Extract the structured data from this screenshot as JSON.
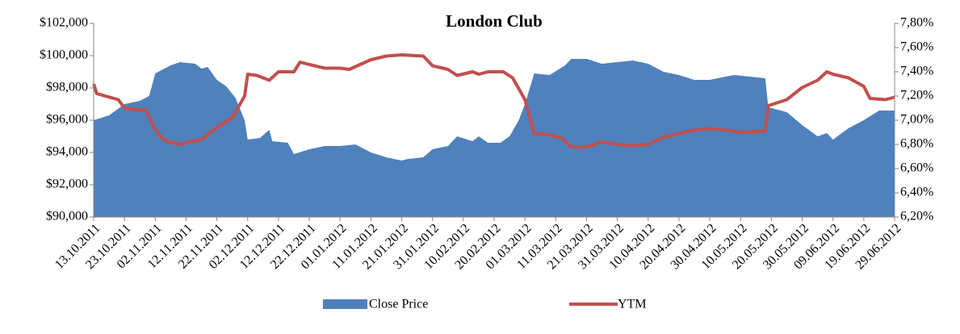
{
  "chart_data": {
    "type": "area-line",
    "title": "London Club",
    "xlim": [
      "13.10.2011",
      "29.06.2012"
    ],
    "xticks": [
      "13.10.2011",
      "23.10.2011",
      "02.11.2011",
      "12.11.2011",
      "22.11.2011",
      "02.12.2011",
      "12.12.2011",
      "22.12.2011",
      "01.01.2012",
      "11.01.2012",
      "21.01.2012",
      "31.01.2012",
      "10.02.2012",
      "20.02.2012",
      "01.03.2012",
      "11.03.2012",
      "21.03.2012",
      "31.03.2012",
      "10.04.2012",
      "20.04.2012",
      "30.04.2012",
      "10.05.2012",
      "20.05.2012",
      "30.05.2012",
      "09.06.2012",
      "19.06.2012",
      "29.06.2012"
    ],
    "ylim": [
      90000,
      102000
    ],
    "yticks": [
      {
        "value": 90000,
        "label": "$90,000"
      },
      {
        "value": 92000,
        "label": "$92,000"
      },
      {
        "value": 94000,
        "label": "$94,000"
      },
      {
        "value": 96000,
        "label": "$96,000"
      },
      {
        "value": 98000,
        "label": "$98,000"
      },
      {
        "value": 100000,
        "label": "$100,000"
      },
      {
        "value": 102000,
        "label": "$102,000"
      }
    ],
    "y2lim": [
      6.2,
      7.8
    ],
    "y2ticks": [
      {
        "value": 6.2,
        "label": "6,20%"
      },
      {
        "value": 6.4,
        "label": "6,40%"
      },
      {
        "value": 6.6,
        "label": "6,60%"
      },
      {
        "value": 6.8,
        "label": "6,80%"
      },
      {
        "value": 7.0,
        "label": "7,00%"
      },
      {
        "value": 7.2,
        "label": "7,20%"
      },
      {
        "value": 7.4,
        "label": "7,40%"
      },
      {
        "value": 7.6,
        "label": "7,60%"
      },
      {
        "value": 7.8,
        "label": "7,80%"
      }
    ],
    "legend": "bottom",
    "series": [
      {
        "name": "Close Price",
        "type": "area",
        "color": "#4f81bd",
        "x": [
          "13.10.2011",
          "18.10.2011",
          "23.10.2011",
          "28.10.2011",
          "31.10.2011",
          "02.11.2011",
          "07.11.2011",
          "10.11.2011",
          "15.11.2011",
          "17.11.2011",
          "19.11.2011",
          "22.11.2011",
          "25.11.2011",
          "28.11.2011",
          "01.12.2011",
          "02.12.2011",
          "06.12.2011",
          "09.12.2011",
          "10.12.2011",
          "15.12.2011",
          "17.12.2011",
          "22.12.2011",
          "27.12.2011",
          "01.01.2012",
          "06.01.2012",
          "11.01.2012",
          "16.01.2012",
          "21.01.2012",
          "23.01.2012",
          "28.01.2012",
          "31.01.2012",
          "05.02.2012",
          "08.02.2012",
          "13.02.2012",
          "15.02.2012",
          "18.02.2012",
          "22.02.2012",
          "25.02.2012",
          "28.02.2012",
          "01.03.2012",
          "04.03.2012",
          "09.03.2012",
          "14.03.2012",
          "16.03.2012",
          "21.03.2012",
          "26.03.2012",
          "31.03.2012",
          "05.04.2012",
          "10.04.2012",
          "15.04.2012",
          "20.04.2012",
          "25.04.2012",
          "30.04.2012",
          "05.05.2012",
          "08.05.2012",
          "13.05.2012",
          "18.05.2012",
          "19.05.2012",
          "25.05.2012",
          "30.05.2012",
          "04.06.2012",
          "07.06.2012",
          "09.06.2012",
          "14.06.2012",
          "19.06.2012",
          "24.06.2012",
          "29.06.2012"
        ],
        "values": [
          96000,
          96300,
          97000,
          97200,
          97500,
          98900,
          99400,
          99600,
          99500,
          99200,
          99300,
          98500,
          98100,
          97400,
          96000,
          94800,
          94900,
          95400,
          94700,
          94600,
          93900,
          94200,
          94400,
          94400,
          94500,
          94000,
          93700,
          93500,
          93600,
          93700,
          94200,
          94400,
          95000,
          94700,
          95000,
          94600,
          94600,
          95000,
          96000,
          97000,
          98900,
          98800,
          99400,
          99800,
          99800,
          99500,
          99600,
          99700,
          99500,
          99000,
          98800,
          98500,
          98500,
          98700,
          98800,
          98700,
          98600,
          96800,
          96500,
          95700,
          95000,
          95200,
          94800,
          95500,
          96000,
          96600,
          96600
        ]
      },
      {
        "name": "YTM",
        "type": "line",
        "axis": "y2",
        "color": "#c0504d",
        "x": [
          "13.10.2011",
          "14.10.2011",
          "21.10.2011",
          "23.10.2011",
          "30.10.2011",
          "02.11.2011",
          "05.11.2011",
          "10.11.2011",
          "13.11.2011",
          "17.11.2011",
          "22.11.2011",
          "27.11.2011",
          "01.12.2011",
          "02.12.2011",
          "05.12.2011",
          "09.12.2011",
          "12.12.2011",
          "17.12.2011",
          "19.12.2011",
          "22.12.2011",
          "27.12.2011",
          "01.01.2012",
          "04.01.2012",
          "11.01.2012",
          "16.01.2012",
          "21.01.2012",
          "28.01.2012",
          "31.01.2012",
          "05.02.2012",
          "08.02.2012",
          "13.02.2012",
          "15.02.2012",
          "18.02.2012",
          "23.02.2012",
          "26.02.2012",
          "01.03.2012",
          "04.03.2012",
          "09.03.2012",
          "13.03.2012",
          "16.03.2012",
          "21.03.2012",
          "26.03.2012",
          "31.03.2012",
          "05.04.2012",
          "10.04.2012",
          "15.04.2012",
          "20.04.2012",
          "25.04.2012",
          "30.04.2012",
          "05.05.2012",
          "10.05.2012",
          "18.05.2012",
          "19.05.2012",
          "25.05.2012",
          "30.05.2012",
          "04.06.2012",
          "07.06.2012",
          "09.06.2012",
          "14.06.2012",
          "19.06.2012",
          "21.06.2012",
          "26.06.2012",
          "29.06.2012"
        ],
        "values": [
          7.3,
          7.22,
          7.17,
          7.1,
          7.08,
          6.92,
          6.83,
          6.8,
          6.82,
          6.84,
          6.94,
          7.02,
          7.2,
          7.38,
          7.37,
          7.33,
          7.4,
          7.4,
          7.48,
          7.46,
          7.43,
          7.43,
          7.42,
          7.5,
          7.53,
          7.54,
          7.53,
          7.45,
          7.42,
          7.37,
          7.4,
          7.38,
          7.4,
          7.4,
          7.35,
          7.17,
          6.89,
          6.88,
          6.85,
          6.78,
          6.78,
          6.82,
          6.8,
          6.79,
          6.8,
          6.86,
          6.89,
          6.92,
          6.93,
          6.92,
          6.9,
          6.91,
          7.12,
          7.17,
          7.27,
          7.33,
          7.4,
          7.38,
          7.35,
          7.28,
          7.18,
          7.17,
          7.19
        ]
      }
    ]
  }
}
